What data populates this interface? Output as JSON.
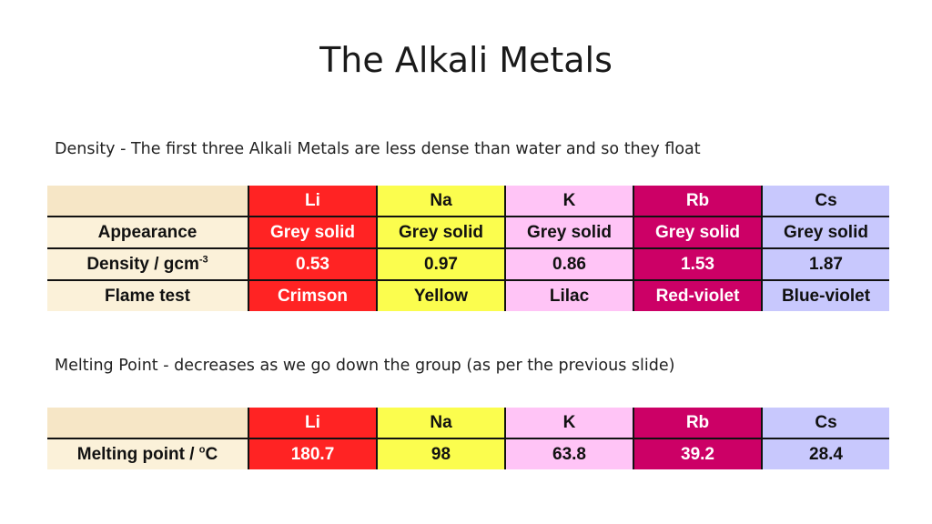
{
  "slide": {
    "title": "The Alkali Metals",
    "density_caption": "Density - The first three Alkali Metals are less dense than water and so they float",
    "melting_caption": "Melting Point - decreases as we go down the group (as per the previous slide)"
  },
  "table1": {
    "headers": [
      "Li",
      "Na",
      "K",
      "Rb",
      "Cs"
    ],
    "rows": [
      {
        "label": "Appearance",
        "values": [
          "Grey solid",
          "Grey solid",
          "Grey solid",
          "Grey solid",
          "Grey solid"
        ]
      },
      {
        "label": "Density / gcm",
        "label_sup": "-3",
        "values": [
          "0.53",
          "0.97",
          "0.86",
          "1.53",
          "1.87"
        ]
      },
      {
        "label": "Flame test",
        "values": [
          "Crimson",
          "Yellow",
          "Lilac",
          "Red-violet",
          "Blue-violet"
        ]
      }
    ]
  },
  "table2": {
    "headers": [
      "Li",
      "Na",
      "K",
      "Rb",
      "Cs"
    ],
    "rows": [
      {
        "label": "Melting point / ",
        "label_sup": "o",
        "label_suffix": "C",
        "values": [
          "180.7",
          "98",
          "63.8",
          "39.2",
          "28.4"
        ]
      }
    ]
  },
  "colors": {
    "Li": "#ff2323",
    "Na": "#fbfd4e",
    "K": "#ffc4f6",
    "Rb": "#cc0066",
    "Cs": "#c8c8fd",
    "label_background": "#fbf1d9"
  }
}
